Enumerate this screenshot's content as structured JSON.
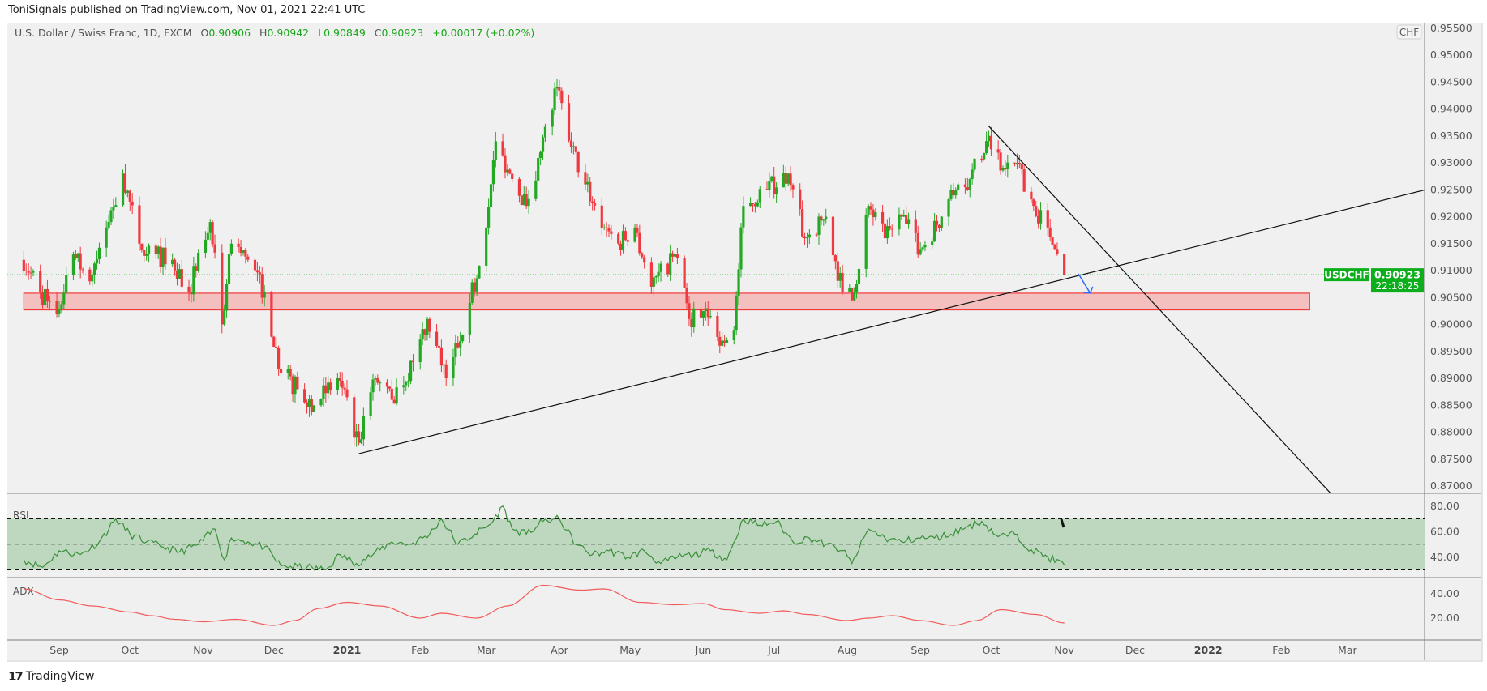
{
  "published": "ToniSignals published on TradingView.com, Nov 01, 2021 22:41 UTC",
  "legend": {
    "symbol": "U.S. Dollar / Swiss Franc, 1D, FXCM",
    "o_label": "O",
    "o": "0.90906",
    "h_label": "H",
    "h": "0.90942",
    "l_label": "L",
    "l": "0.90849",
    "c_label": "C",
    "c": "0.90923",
    "change": "+0.00017 (+0.02%)"
  },
  "currency_badge": "CHF",
  "last_price": {
    "symbol": "USDCHF",
    "price": "0.90923",
    "countdown": "22:18:25",
    "value": 0.90923
  },
  "logo_text": "TradingView",
  "colors": {
    "up": "#22a822",
    "down": "#f0383f",
    "label": "#0cae1c",
    "zone_fill": "#f4c0bf",
    "zone_border": "#f23a3a",
    "rsi": "#3b8e3b",
    "rsi_band": "#bed8bf",
    "adx": "#f25b5b",
    "arrow": "#2f6bff"
  },
  "chart_data": [
    {
      "type": "candlestick",
      "title": "U.S. Dollar / Swiss Franc, 1D, FXCM",
      "ylim": [
        0.868,
        0.9565
      ],
      "y_ticks": [
        "0.95500",
        "0.95000",
        "0.94500",
        "0.94000",
        "0.93500",
        "0.93000",
        "0.92500",
        "0.92000",
        "0.91500",
        "0.91000",
        "0.90500",
        "0.90000",
        "0.89500",
        "0.89000",
        "0.88500",
        "0.88000",
        "0.87500",
        "0.87000"
      ],
      "x_ticks": [
        {
          "date": "2020-09-01",
          "label": "Sep"
        },
        {
          "date": "2020-10-01",
          "label": "Oct"
        },
        {
          "date": "2020-11-01",
          "label": "Nov"
        },
        {
          "date": "2020-12-01",
          "label": "Dec"
        },
        {
          "date": "2021-01-01",
          "label": "2021",
          "bold": true
        },
        {
          "date": "2021-02-01",
          "label": "Feb"
        },
        {
          "date": "2021-03-01",
          "label": "Mar"
        },
        {
          "date": "2021-04-01",
          "label": "Apr"
        },
        {
          "date": "2021-05-01",
          "label": "May"
        },
        {
          "date": "2021-06-01",
          "label": "Jun"
        },
        {
          "date": "2021-07-01",
          "label": "Jul"
        },
        {
          "date": "2021-08-01",
          "label": "Aug"
        },
        {
          "date": "2021-09-01",
          "label": "Sep"
        },
        {
          "date": "2021-10-01",
          "label": "Oct"
        },
        {
          "date": "2021-11-01",
          "label": "Nov"
        },
        {
          "date": "2021-12-01",
          "label": "Dec"
        },
        {
          "date": "2022-01-01",
          "label": "2022",
          "bold": true
        },
        {
          "date": "2022-02-01",
          "label": "Feb"
        },
        {
          "date": "2022-03-01",
          "label": "Mar"
        }
      ],
      "approx_closes": [
        [
          "2020-08-17",
          0.912
        ],
        [
          "2020-08-24",
          0.906
        ],
        [
          "2020-08-31",
          0.902
        ],
        [
          "2020-09-07",
          0.913
        ],
        [
          "2020-09-14",
          0.908
        ],
        [
          "2020-09-21",
          0.918
        ],
        [
          "2020-09-28",
          0.928
        ],
        [
          "2020-10-05",
          0.915
        ],
        [
          "2020-10-12",
          0.913
        ],
        [
          "2020-10-19",
          0.912
        ],
        [
          "2020-10-26",
          0.906
        ],
        [
          "2020-11-04",
          0.919
        ],
        [
          "2020-11-09",
          0.9
        ],
        [
          "2020-11-13",
          0.915
        ],
        [
          "2020-11-20",
          0.912
        ],
        [
          "2020-11-27",
          0.906
        ],
        [
          "2020-12-04",
          0.891
        ],
        [
          "2020-12-11",
          0.888
        ],
        [
          "2020-12-18",
          0.885
        ],
        [
          "2020-12-28",
          0.89
        ],
        [
          "2021-01-06",
          0.878
        ],
        [
          "2021-01-13",
          0.89
        ],
        [
          "2021-01-20",
          0.886
        ],
        [
          "2021-01-29",
          0.893
        ],
        [
          "2021-02-04",
          0.901
        ],
        [
          "2021-02-12",
          0.89
        ],
        [
          "2021-02-22",
          0.904
        ],
        [
          "2021-03-01",
          0.918
        ],
        [
          "2021-03-05",
          0.934
        ],
        [
          "2021-03-12",
          0.927
        ],
        [
          "2021-03-18",
          0.922
        ],
        [
          "2021-03-24",
          0.932
        ],
        [
          "2021-03-31",
          0.944
        ],
        [
          "2021-04-06",
          0.933
        ],
        [
          "2021-04-12",
          0.926
        ],
        [
          "2021-04-20",
          0.918
        ],
        [
          "2021-04-26",
          0.915
        ],
        [
          "2021-05-03",
          0.918
        ],
        [
          "2021-05-10",
          0.907
        ],
        [
          "2021-05-20",
          0.913
        ],
        [
          "2021-05-26",
          0.901
        ],
        [
          "2021-06-02",
          0.903
        ],
        [
          "2021-06-09",
          0.897
        ],
        [
          "2021-06-14",
          0.899
        ],
        [
          "2021-06-18",
          0.922
        ],
        [
          "2021-06-28",
          0.925
        ],
        [
          "2021-07-07",
          0.928
        ],
        [
          "2021-07-14",
          0.916
        ],
        [
          "2021-07-23",
          0.92
        ],
        [
          "2021-07-30",
          0.906
        ],
        [
          "2021-08-04",
          0.906
        ],
        [
          "2021-08-10",
          0.922
        ],
        [
          "2021-08-17",
          0.916
        ],
        [
          "2021-08-24",
          0.92
        ],
        [
          "2021-09-01",
          0.914
        ],
        [
          "2021-09-10",
          0.92
        ],
        [
          "2021-09-17",
          0.926
        ],
        [
          "2021-09-22",
          0.927
        ],
        [
          "2021-09-30",
          0.935
        ],
        [
          "2021-10-06",
          0.929
        ],
        [
          "2021-10-12",
          0.93
        ],
        [
          "2021-10-19",
          0.922
        ],
        [
          "2021-10-25",
          0.918
        ],
        [
          "2021-10-28",
          0.914
        ],
        [
          "2021-11-01",
          0.90923
        ]
      ],
      "annotations": {
        "support_zone": {
          "from": "2020-08-17",
          "to": "2022-02-13",
          "low": 0.9027,
          "high": 0.9058
        },
        "rising_trendline": {
          "from": [
            "2021-01-06",
            0.876
          ],
          "to": [
            "2022-04-03",
            0.925
          ]
        },
        "falling_trendline": {
          "from": [
            "2021-09-30",
            0.9368
          ],
          "to": [
            "2022-02-22",
            0.8686
          ]
        },
        "arrow": {
          "from": [
            "2021-11-07",
            0.9094
          ],
          "to": [
            "2021-11-12",
            0.9058
          ]
        }
      }
    },
    {
      "type": "line",
      "title": "RSI",
      "ylim": [
        20,
        90
      ],
      "y_ticks": [
        "80.00",
        "60.00",
        "40.00"
      ],
      "bands": [
        30,
        50,
        70
      ],
      "values": [
        [
          "2020-08-17",
          38
        ],
        [
          "2020-08-25",
          32
        ],
        [
          "2020-09-01",
          45
        ],
        [
          "2020-09-10",
          42
        ],
        [
          "2020-09-18",
          52
        ],
        [
          "2020-09-25",
          70
        ],
        [
          "2020-10-01",
          58
        ],
        [
          "2020-10-08",
          52
        ],
        [
          "2020-10-15",
          48
        ],
        [
          "2020-10-22",
          44
        ],
        [
          "2020-10-30",
          50
        ],
        [
          "2020-11-06",
          62
        ],
        [
          "2020-11-10",
          38
        ],
        [
          "2020-11-13",
          55
        ],
        [
          "2020-11-20",
          52
        ],
        [
          "2020-11-27",
          48
        ],
        [
          "2020-12-04",
          33
        ],
        [
          "2020-12-15",
          32
        ],
        [
          "2020-12-23",
          30
        ],
        [
          "2020-12-29",
          42
        ],
        [
          "2021-01-05",
          35
        ],
        [
          "2021-01-12",
          42
        ],
        [
          "2021-01-20",
          52
        ],
        [
          "2021-01-28",
          50
        ],
        [
          "2021-02-05",
          58
        ],
        [
          "2021-02-10",
          70
        ],
        [
          "2021-02-17",
          50
        ],
        [
          "2021-02-24",
          58
        ],
        [
          "2021-03-03",
          66
        ],
        [
          "2021-03-08",
          80
        ],
        [
          "2021-03-12",
          62
        ],
        [
          "2021-03-18",
          58
        ],
        [
          "2021-03-25",
          68
        ],
        [
          "2021-04-01",
          70
        ],
        [
          "2021-04-08",
          50
        ],
        [
          "2021-04-15",
          42
        ],
        [
          "2021-04-22",
          45
        ],
        [
          "2021-04-30",
          40
        ],
        [
          "2021-05-07",
          45
        ],
        [
          "2021-05-14",
          35
        ],
        [
          "2021-05-21",
          40
        ],
        [
          "2021-05-28",
          42
        ],
        [
          "2021-06-04",
          45
        ],
        [
          "2021-06-11",
          38
        ],
        [
          "2021-06-18",
          70
        ],
        [
          "2021-06-25",
          65
        ],
        [
          "2021-07-02",
          68
        ],
        [
          "2021-07-09",
          52
        ],
        [
          "2021-07-16",
          55
        ],
        [
          "2021-07-23",
          50
        ],
        [
          "2021-07-30",
          45
        ],
        [
          "2021-08-03",
          35
        ],
        [
          "2021-08-10",
          62
        ],
        [
          "2021-08-17",
          55
        ],
        [
          "2021-08-24",
          52
        ],
        [
          "2021-08-31",
          55
        ],
        [
          "2021-09-07",
          55
        ],
        [
          "2021-09-14",
          58
        ],
        [
          "2021-09-21",
          64
        ],
        [
          "2021-09-27",
          68
        ],
        [
          "2021-10-04",
          56
        ],
        [
          "2021-10-11",
          58
        ],
        [
          "2021-10-18",
          46
        ],
        [
          "2021-10-25",
          40
        ],
        [
          "2021-11-01",
          34
        ]
      ]
    },
    {
      "type": "line",
      "title": "ADX",
      "ylim": [
        5,
        52
      ],
      "y_ticks": [
        "40.00",
        "20.00"
      ],
      "values": [
        [
          "2020-08-17",
          44
        ],
        [
          "2020-09-01",
          35
        ],
        [
          "2020-09-15",
          30
        ],
        [
          "2020-10-01",
          25
        ],
        [
          "2020-10-10",
          22
        ],
        [
          "2020-10-20",
          19
        ],
        [
          "2020-11-01",
          17
        ],
        [
          "2020-11-15",
          19
        ],
        [
          "2020-12-01",
          14
        ],
        [
          "2020-12-10",
          18
        ],
        [
          "2020-12-20",
          28
        ],
        [
          "2021-01-01",
          33
        ],
        [
          "2021-01-15",
          30
        ],
        [
          "2021-02-01",
          20
        ],
        [
          "2021-02-10",
          24
        ],
        [
          "2021-02-25",
          20
        ],
        [
          "2021-03-10",
          30
        ],
        [
          "2021-03-25",
          47
        ],
        [
          "2021-04-10",
          43
        ],
        [
          "2021-04-20",
          44
        ],
        [
          "2021-05-05",
          33
        ],
        [
          "2021-05-20",
          31
        ],
        [
          "2021-06-01",
          32
        ],
        [
          "2021-06-10",
          27
        ],
        [
          "2021-06-25",
          24
        ],
        [
          "2021-07-05",
          26
        ],
        [
          "2021-07-15",
          23
        ],
        [
          "2021-08-01",
          18
        ],
        [
          "2021-08-10",
          20
        ],
        [
          "2021-08-20",
          22
        ],
        [
          "2021-09-01",
          18
        ],
        [
          "2021-09-15",
          14
        ],
        [
          "2021-09-25",
          18
        ],
        [
          "2021-10-05",
          27
        ],
        [
          "2021-10-20",
          23
        ],
        [
          "2021-11-01",
          16
        ]
      ]
    }
  ]
}
